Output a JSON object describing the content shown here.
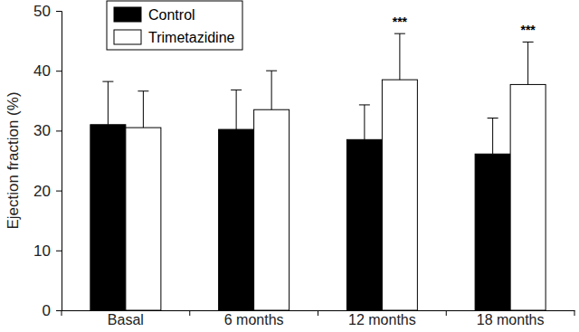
{
  "chart_data": {
    "type": "bar",
    "y_label": "Ejection fraction (%)",
    "categories": [
      "Basal",
      "6 months",
      "12 months",
      "18 months"
    ],
    "series": [
      {
        "name": "Control",
        "color": "#000000",
        "values": [
          31.0,
          30.2,
          28.5,
          26.1
        ],
        "errors": [
          7.2,
          6.6,
          5.8,
          6.0
        ]
      },
      {
        "name": "Trimetazidine",
        "color": "#ffffff",
        "values": [
          30.5,
          33.5,
          38.5,
          37.7
        ],
        "errors": [
          6.1,
          6.5,
          7.7,
          7.1
        ]
      }
    ],
    "annotations": [
      {
        "text": "***",
        "x": "12 months"
      },
      {
        "text": "***",
        "x": "18 months"
      }
    ],
    "ylim": [
      0,
      50
    ],
    "yticks": [
      0,
      10,
      20,
      30,
      40,
      50
    ],
    "legend": "upper left",
    "grid": false
  }
}
